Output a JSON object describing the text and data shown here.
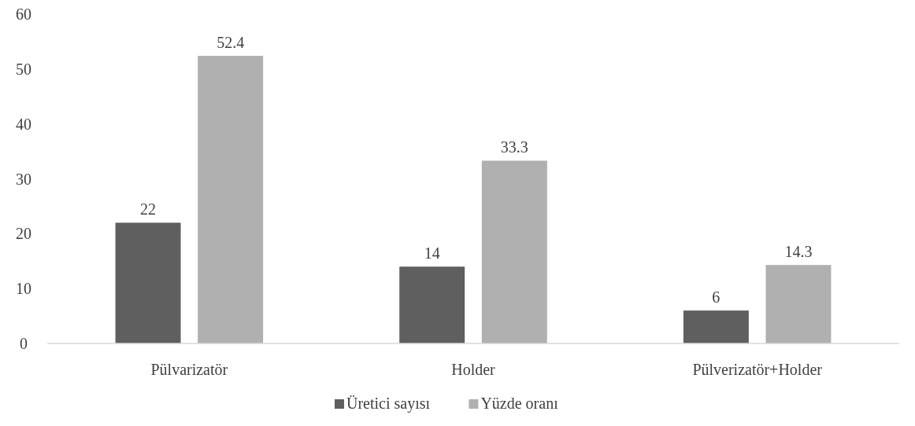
{
  "chart_data": {
    "type": "bar",
    "categories": [
      "Pülvarizatör",
      "Holder",
      "Pülverizatör+Holder"
    ],
    "series": [
      {
        "name": "Üretici sayısı",
        "color": "#5f5f5f",
        "values": [
          22,
          14,
          6
        ]
      },
      {
        "name": "Yüzde oranı",
        "color": "#b0b0b0",
        "values": [
          52.4,
          33.3,
          14.3
        ]
      }
    ],
    "ylim": [
      0,
      60
    ],
    "yticks": [
      0,
      10,
      20,
      30,
      40,
      50,
      60
    ],
    "grid": false,
    "legend": "bottom",
    "data_labels": true
  }
}
